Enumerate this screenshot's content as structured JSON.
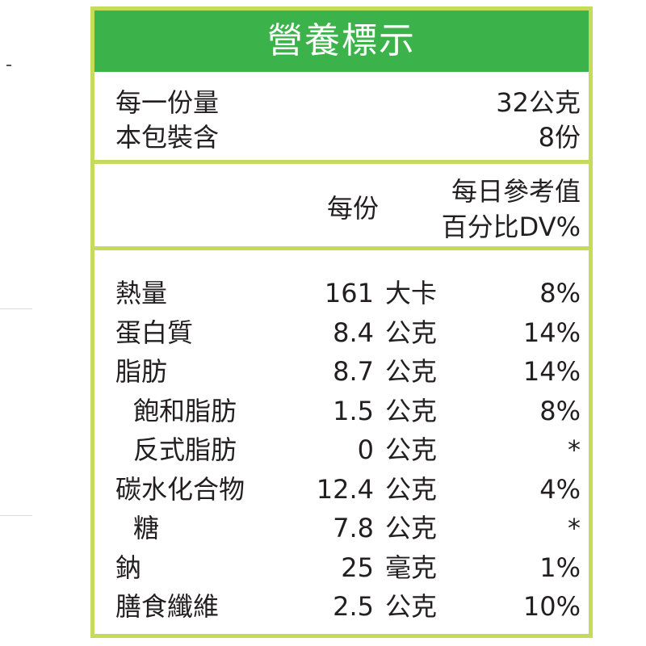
{
  "title": "營養標示",
  "serving": {
    "label": "每一份量",
    "value": "32公克",
    "pack_label": "本包裝含",
    "pack_value": "8份"
  },
  "columns": {
    "per_serving": "每份",
    "dv_line1": "每日參考值",
    "dv_line2": "百分比DV%"
  },
  "rows": [
    {
      "name": "熱量",
      "amount": "161",
      "unit": "大卡",
      "dv": "8%"
    },
    {
      "name": "蛋白質",
      "amount": "8.4",
      "unit": "公克",
      "dv": "14%"
    },
    {
      "name": "脂肪",
      "amount": "8.7",
      "unit": "公克",
      "dv": "14%"
    },
    {
      "name": "飽和脂肪",
      "amount": "1.5",
      "unit": "公克",
      "dv": "8%"
    },
    {
      "name": "反式脂肪",
      "amount": "0",
      "unit": "公克",
      "dv": "*"
    },
    {
      "name": "碳水化合物",
      "amount": "12.4",
      "unit": "公克",
      "dv": "4%"
    },
    {
      "name": "糖",
      "amount": "7.8",
      "unit": "公克",
      "dv": "*"
    },
    {
      "name": "鈉",
      "amount": "25",
      "unit": "毫克",
      "dv": "1%"
    },
    {
      "name": "膳食纖維",
      "amount": "2.5",
      "unit": "公克",
      "dv": "10%"
    }
  ],
  "colors": {
    "header": "#3cb34a",
    "border": "#c6da5c",
    "text": "#231f20"
  }
}
